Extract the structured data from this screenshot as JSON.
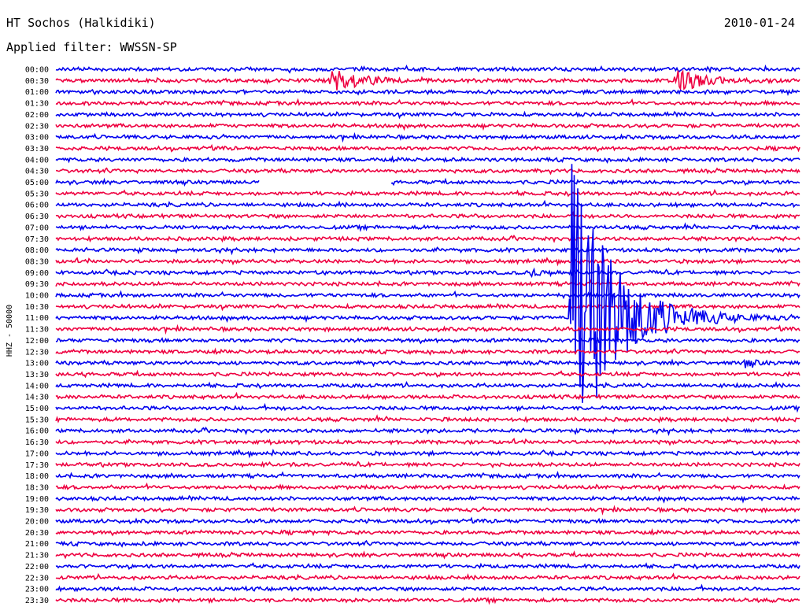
{
  "header": {
    "station": "HT Sochos (Halkidiki)",
    "date": "2010-01-24",
    "filter": "Applied filter: WWSSN-SP"
  },
  "chart_data": {
    "type": "line",
    "title": "HT Sochos (Halkidiki)",
    "ylabel": "HHZ - 50000",
    "ytick_labels": [
      "00:00",
      "00:30",
      "01:00",
      "01:30",
      "02:00",
      "02:30",
      "03:00",
      "03:30",
      "04:00",
      "04:30",
      "05:00",
      "05:30",
      "06:00",
      "06:30",
      "07:00",
      "07:30",
      "08:00",
      "08:30",
      "09:00",
      "09:30",
      "10:00",
      "10:30",
      "11:00",
      "11:30",
      "12:00",
      "12:30",
      "13:00",
      "13:30",
      "14:00",
      "14:30",
      "15:00",
      "15:30",
      "16:00",
      "16:30",
      "17:00",
      "17:30",
      "18:00",
      "18:30",
      "19:00",
      "19:30",
      "20:00",
      "20:30",
      "21:00",
      "21:30",
      "22:00",
      "22:30",
      "23:00",
      "23:30"
    ],
    "trace_duration_min": 30,
    "colors": [
      "#0000ee",
      "#ee0040"
    ],
    "gaps": [
      {
        "row": 10,
        "from_min": 8.2,
        "to_min": 13.5
      }
    ],
    "events": [
      {
        "row": 1,
        "at_min": 11.1,
        "amp_rows": 1.0,
        "decay_min": 1.1
      },
      {
        "row": 1,
        "at_min": 25.0,
        "amp_rows": 1.0,
        "decay_min": 1.1
      },
      {
        "row": 18,
        "at_min": 19.1,
        "amp_rows": 0.3,
        "decay_min": 0.6
      },
      {
        "row": 22,
        "at_min": 20.8,
        "amp_rows": 14.0,
        "decay_min": 1.6
      },
      {
        "row": 26,
        "at_min": 27.8,
        "amp_rows": 0.35,
        "decay_min": 0.4
      }
    ]
  }
}
